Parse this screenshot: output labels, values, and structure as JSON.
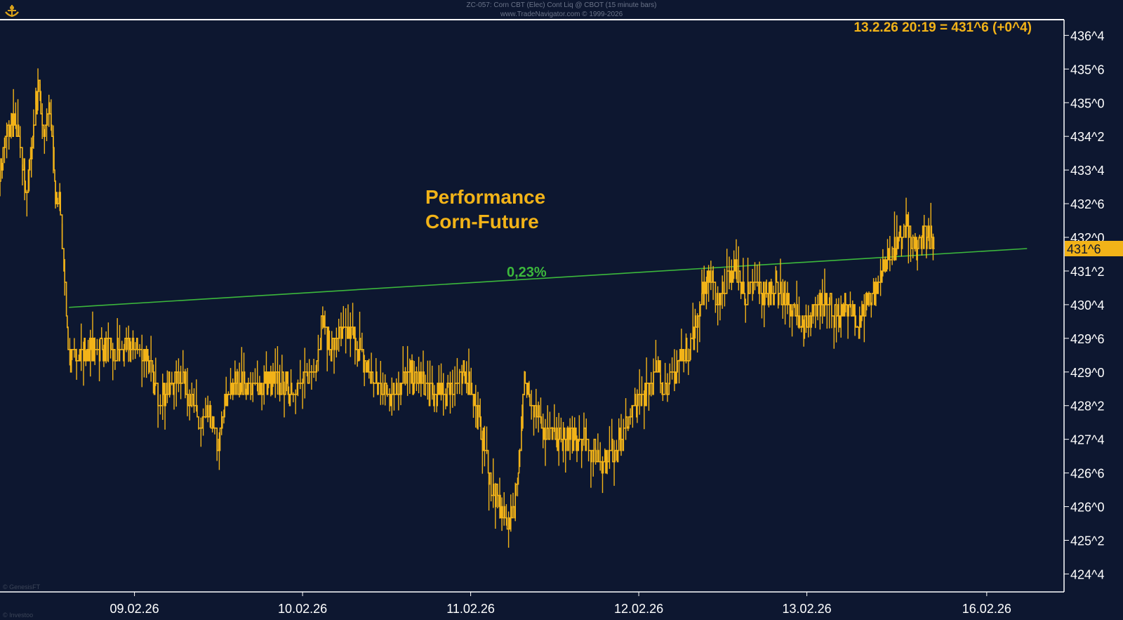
{
  "header": {
    "symbol_line": "ZC-057: Corn CBT (Elec) Cont Liq @ CBOT (15 minute bars)",
    "copyright_line": "www.TradeNavigator.com © 1999-2026"
  },
  "quote_label": "13.2.26 20:19 = 431^6 (+0^4)",
  "annotation": {
    "title_line1": "Performance",
    "title_line2": "Corn-Future",
    "performance": "0,23%"
  },
  "watermarks": {
    "bottom_left_1": "© GenesisFT",
    "bottom_left_2": "© Investoo"
  },
  "colors": {
    "background": "#0d1730",
    "price_line": "#f2b318",
    "trend_line": "#3cb83c",
    "axis_text": "#ffffff",
    "last_price_badge_bg": "#f2b318",
    "last_price_badge_text": "#0d1730"
  },
  "chart_data": {
    "type": "line",
    "bar_interval": "15 minute bars",
    "last_price_label": "431^6",
    "x_ticks": [
      "09.02.26",
      "10.02.26",
      "11.02.26",
      "12.02.26",
      "13.02.26",
      "16.02.26"
    ],
    "x_tick_days": [
      1,
      2,
      3,
      4,
      5,
      6.07
    ],
    "x_range_days": [
      0.2,
      6.53
    ],
    "y_ticks": [
      "424^4",
      "425^2",
      "426^0",
      "426^6",
      "427^4",
      "428^2",
      "429^0",
      "429^6",
      "430^4",
      "431^2",
      "432^0",
      "432^6",
      "433^4",
      "434^2",
      "435^0",
      "435^6",
      "436^4"
    ],
    "y_tick_values": [
      424.5,
      425.25,
      426.0,
      426.75,
      427.5,
      428.25,
      429.0,
      429.75,
      430.5,
      431.25,
      432.0,
      432.75,
      433.5,
      434.25,
      435.0,
      435.75,
      436.5
    ],
    "y_range": [
      424.1,
      436.85
    ],
    "last_price": 431.75,
    "trend_line": {
      "start": [
        0.61,
        430.44
      ],
      "end": [
        6.31,
        431.75
      ],
      "label": "0,23%"
    },
    "series": [
      {
        "values": [
          [
            0.2,
            433.5
          ],
          [
            0.24,
            434.25
          ],
          [
            0.28,
            434.6
          ],
          [
            0.32,
            434.0
          ],
          [
            0.36,
            433.0
          ],
          [
            0.4,
            434.5
          ],
          [
            0.43,
            435.5
          ],
          [
            0.46,
            434.4
          ],
          [
            0.5,
            434.8
          ],
          [
            0.53,
            433.0
          ],
          [
            0.56,
            432.7
          ],
          [
            0.58,
            431.5
          ],
          [
            0.6,
            430.0
          ],
          [
            0.62,
            429.2
          ],
          [
            0.66,
            429.5
          ],
          [
            0.72,
            429.4
          ],
          [
            0.8,
            429.6
          ],
          [
            0.88,
            429.4
          ],
          [
            0.93,
            429.5
          ],
          [
            1.0,
            429.6
          ],
          [
            1.08,
            429.3
          ],
          [
            1.14,
            428.4
          ],
          [
            1.2,
            428.6
          ],
          [
            1.28,
            429.0
          ],
          [
            1.35,
            428.2
          ],
          [
            1.4,
            427.8
          ],
          [
            1.45,
            428.0
          ],
          [
            1.5,
            427.4
          ],
          [
            1.55,
            428.5
          ],
          [
            1.62,
            428.8
          ],
          [
            1.7,
            428.6
          ],
          [
            1.78,
            428.8
          ],
          [
            1.86,
            428.7
          ],
          [
            1.94,
            428.6
          ],
          [
            2.0,
            428.7
          ],
          [
            2.08,
            429.2
          ],
          [
            2.12,
            430.2
          ],
          [
            2.16,
            429.5
          ],
          [
            2.22,
            429.8
          ],
          [
            2.28,
            429.9
          ],
          [
            2.34,
            429.5
          ],
          [
            2.4,
            428.9
          ],
          [
            2.46,
            428.6
          ],
          [
            2.54,
            428.6
          ],
          [
            2.62,
            428.9
          ],
          [
            2.7,
            428.8
          ],
          [
            2.78,
            428.5
          ],
          [
            2.86,
            428.6
          ],
          [
            2.92,
            428.8
          ],
          [
            2.98,
            428.9
          ],
          [
            3.03,
            428.3
          ],
          [
            3.07,
            427.5
          ],
          [
            3.1,
            427.0
          ],
          [
            3.13,
            426.3
          ],
          [
            3.16,
            426.2
          ],
          [
            3.19,
            425.9
          ],
          [
            3.23,
            425.6
          ],
          [
            3.27,
            426.2
          ],
          [
            3.32,
            428.7
          ],
          [
            3.38,
            428.3
          ],
          [
            3.44,
            427.6
          ],
          [
            3.52,
            427.5
          ],
          [
            3.6,
            427.5
          ],
          [
            3.66,
            427.6
          ],
          [
            3.72,
            427.3
          ],
          [
            3.78,
            427.0
          ],
          [
            3.84,
            427.2
          ],
          [
            3.9,
            427.5
          ],
          [
            3.95,
            428.1
          ],
          [
            4.0,
            428.3
          ],
          [
            4.06,
            428.8
          ],
          [
            4.12,
            429.0
          ],
          [
            4.18,
            428.6
          ],
          [
            4.24,
            429.3
          ],
          [
            4.3,
            429.5
          ],
          [
            4.34,
            430.0
          ],
          [
            4.38,
            430.8
          ],
          [
            4.42,
            431.1
          ],
          [
            4.47,
            430.6
          ],
          [
            4.52,
            431.0
          ],
          [
            4.58,
            431.3
          ],
          [
            4.64,
            430.6
          ],
          [
            4.7,
            430.9
          ],
          [
            4.76,
            430.7
          ],
          [
            4.82,
            430.9
          ],
          [
            4.88,
            430.6
          ],
          [
            4.94,
            430.2
          ],
          [
            5.0,
            430.0
          ],
          [
            5.06,
            430.4
          ],
          [
            5.12,
            430.7
          ],
          [
            5.18,
            430.1
          ],
          [
            5.24,
            430.5
          ],
          [
            5.3,
            430.0
          ],
          [
            5.36,
            430.6
          ],
          [
            5.42,
            430.9
          ],
          [
            5.48,
            431.6
          ],
          [
            5.54,
            431.8
          ],
          [
            5.6,
            432.3
          ],
          [
            5.64,
            431.7
          ],
          [
            5.68,
            431.9
          ],
          [
            5.72,
            432.2
          ],
          [
            5.76,
            431.75
          ]
        ]
      }
    ]
  }
}
